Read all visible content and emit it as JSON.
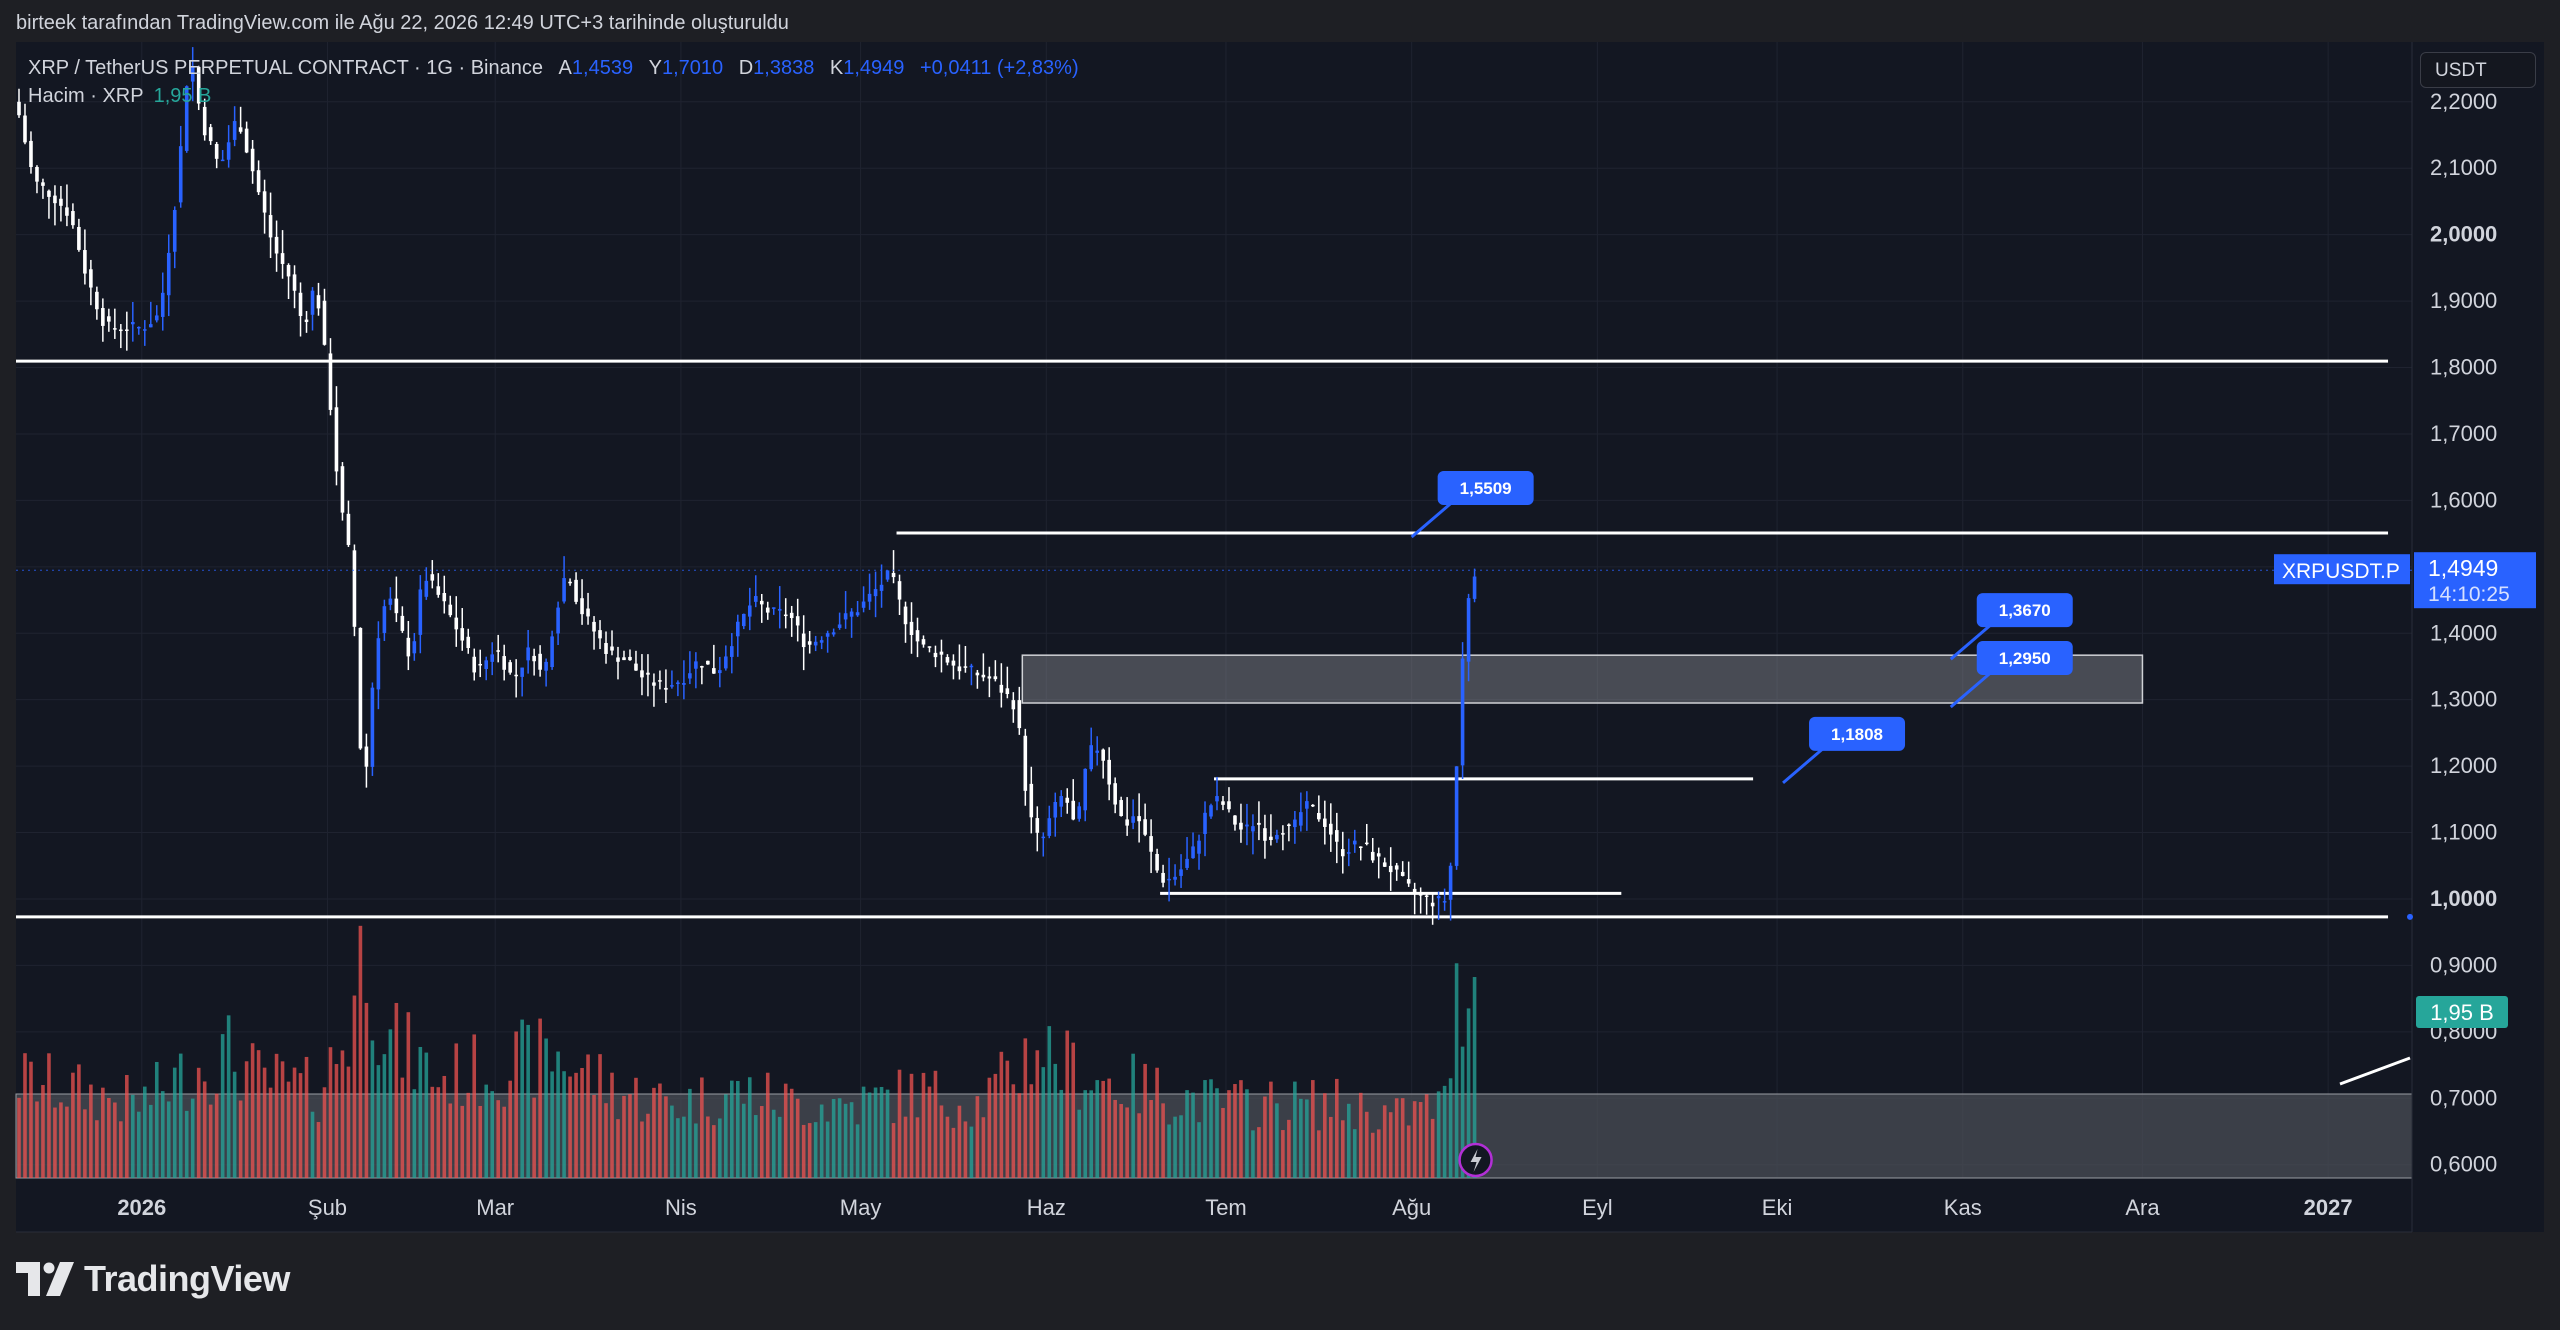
{
  "header": {
    "caption": "birteek tarafından TradingView.com ile Ağu 22, 2026 12:49 UTC+3 tarihinde oluşturuldu"
  },
  "legend": {
    "symbol_line": "XRP / TetherUS PERPETUAL CONTRACT · 1G · Binance",
    "open_key": "A",
    "open": "1,4539",
    "high_key": "Y",
    "high": "1,7010",
    "low_key": "D",
    "low": "1,3838",
    "close_key": "K",
    "close": "1,4949",
    "change": "+0,0411 (+2,83%)",
    "volume_label": "Hacim · XRP",
    "volume_value": "1,95 B"
  },
  "currency": "USDT",
  "brand": "TradingView",
  "colors": {
    "background": "#131722",
    "up": "#2962ff",
    "down": "#ffffff",
    "volume_up": "#26a69a",
    "volume_down": "#ef5350",
    "accent": "#2962ff"
  },
  "chart_data": {
    "type": "candlestick",
    "symbol": "XRPUSDT.P",
    "ylim": [
      0.58,
      2.29
    ],
    "y_ticks": [
      "2,2000",
      "2,1000",
      "2,0000",
      "1,9000",
      "1,8000",
      "1,7000",
      "1,6000",
      "1,5000",
      "1,4000",
      "1,3000",
      "1,2000",
      "1,1000",
      "1,0000",
      "0,9000",
      "0,8000",
      "0,7000",
      "0,6000"
    ],
    "y_ticks_bold": [
      "2,0000",
      "1,0000"
    ],
    "x_ticks": [
      {
        "label": "2026",
        "day": 21,
        "bold": true
      },
      {
        "label": "Şub",
        "day": 52
      },
      {
        "label": "Mar",
        "day": 80
      },
      {
        "label": "Nis",
        "day": 111
      },
      {
        "label": "May",
        "day": 141
      },
      {
        "label": "Haz",
        "day": 172
      },
      {
        "label": "Tem",
        "day": 202
      },
      {
        "label": "Ağu",
        "day": 233
      },
      {
        "label": "Eyl",
        "day": 264
      },
      {
        "label": "Eki",
        "day": 294
      },
      {
        "label": "Kas",
        "day": 325
      },
      {
        "label": "Ara",
        "day": 355
      },
      {
        "label": "2027",
        "day": 386,
        "bold": true
      }
    ],
    "last_price": {
      "label": "1,4949",
      "countdown": "14:10:25",
      "symbol_label": "XRPUSDT.P",
      "value": 1.4949
    },
    "volume_last_label": "1,95 B",
    "path_points": [
      [
        0,
        2.2
      ],
      [
        3,
        2.08
      ],
      [
        6,
        2.06
      ],
      [
        9,
        2.03
      ],
      [
        12,
        1.93
      ],
      [
        15,
        1.86
      ],
      [
        18,
        1.86
      ],
      [
        21,
        1.86
      ],
      [
        24,
        1.88
      ],
      [
        27,
        2.08
      ],
      [
        29,
        2.28
      ],
      [
        31,
        2.17
      ],
      [
        34,
        2.1
      ],
      [
        37,
        2.18
      ],
      [
        40,
        2.08
      ],
      [
        43,
        1.98
      ],
      [
        46,
        1.93
      ],
      [
        48,
        1.86
      ],
      [
        50,
        1.93
      ],
      [
        52,
        1.79
      ],
      [
        54,
        1.6
      ],
      [
        56,
        1.5
      ],
      [
        58,
        1.14
      ],
      [
        60,
        1.38
      ],
      [
        62,
        1.46
      ],
      [
        64,
        1.41
      ],
      [
        66,
        1.36
      ],
      [
        68,
        1.49
      ],
      [
        71,
        1.45
      ],
      [
        74,
        1.4
      ],
      [
        77,
        1.34
      ],
      [
        80,
        1.38
      ],
      [
        83,
        1.33
      ],
      [
        86,
        1.38
      ],
      [
        88,
        1.33
      ],
      [
        90,
        1.43
      ],
      [
        92,
        1.5
      ],
      [
        94,
        1.44
      ],
      [
        96,
        1.41
      ],
      [
        99,
        1.37
      ],
      [
        102,
        1.36
      ],
      [
        105,
        1.33
      ],
      [
        108,
        1.32
      ],
      [
        111,
        1.33
      ],
      [
        114,
        1.36
      ],
      [
        117,
        1.34
      ],
      [
        120,
        1.4
      ],
      [
        123,
        1.45
      ],
      [
        126,
        1.43
      ],
      [
        129,
        1.43
      ],
      [
        132,
        1.38
      ],
      [
        135,
        1.4
      ],
      [
        138,
        1.42
      ],
      [
        141,
        1.44
      ],
      [
        144,
        1.47
      ],
      [
        146,
        1.49
      ],
      [
        148,
        1.43
      ],
      [
        151,
        1.38
      ],
      [
        154,
        1.37
      ],
      [
        157,
        1.35
      ],
      [
        160,
        1.34
      ],
      [
        163,
        1.33
      ],
      [
        165,
        1.31
      ],
      [
        167,
        1.29
      ],
      [
        169,
        1.13
      ],
      [
        171,
        1.08
      ],
      [
        173,
        1.13
      ],
      [
        175,
        1.16
      ],
      [
        177,
        1.1
      ],
      [
        179,
        1.22
      ],
      [
        181,
        1.23
      ],
      [
        183,
        1.16
      ],
      [
        185,
        1.11
      ],
      [
        187,
        1.13
      ],
      [
        189,
        1.08
      ],
      [
        191,
        1.03
      ],
      [
        193,
        1.03
      ],
      [
        195,
        1.05
      ],
      [
        197,
        1.08
      ],
      [
        199,
        1.14
      ],
      [
        201,
        1.15
      ],
      [
        203,
        1.12
      ],
      [
        205,
        1.1
      ],
      [
        207,
        1.12
      ],
      [
        209,
        1.09
      ],
      [
        211,
        1.11
      ],
      [
        213,
        1.1
      ],
      [
        215,
        1.14
      ],
      [
        217,
        1.13
      ],
      [
        219,
        1.11
      ],
      [
        221,
        1.07
      ],
      [
        223,
        1.08
      ],
      [
        225,
        1.08
      ],
      [
        227,
        1.06
      ],
      [
        229,
        1.05
      ],
      [
        231,
        1.03
      ],
      [
        233,
        1.01
      ],
      [
        235,
        1.0
      ],
      [
        237,
        0.995
      ],
      [
        239,
        1.0
      ],
      [
        240,
        1.1
      ],
      [
        241,
        1.3
      ],
      [
        242,
        1.42
      ],
      [
        243,
        1.495
      ]
    ],
    "volume_points": [
      [
        0,
        0.4
      ],
      [
        10,
        0.35
      ],
      [
        20,
        0.3
      ],
      [
        30,
        0.45
      ],
      [
        35,
        0.5
      ],
      [
        40,
        0.4
      ],
      [
        50,
        0.35
      ],
      [
        55,
        0.6
      ],
      [
        58,
        1.0
      ],
      [
        60,
        0.7
      ],
      [
        62,
        0.55
      ],
      [
        65,
        0.5
      ],
      [
        70,
        0.4
      ],
      [
        80,
        0.45
      ],
      [
        90,
        0.5
      ],
      [
        100,
        0.35
      ],
      [
        110,
        0.3
      ],
      [
        120,
        0.35
      ],
      [
        130,
        0.3
      ],
      [
        140,
        0.3
      ],
      [
        150,
        0.35
      ],
      [
        160,
        0.3
      ],
      [
        165,
        0.4
      ],
      [
        170,
        0.55
      ],
      [
        175,
        0.45
      ],
      [
        180,
        0.4
      ],
      [
        190,
        0.35
      ],
      [
        200,
        0.3
      ],
      [
        210,
        0.3
      ],
      [
        220,
        0.3
      ],
      [
        230,
        0.25
      ],
      [
        238,
        0.3
      ],
      [
        240,
        0.7
      ],
      [
        241,
        0.78
      ],
      [
        242,
        0.82
      ],
      [
        243,
        0.8
      ]
    ],
    "horizontal_lines": [
      {
        "value": 1.8096,
        "from_day": 0,
        "to_day": 396
      },
      {
        "value": 1.5509,
        "from_day": 147,
        "to_day": 396
      },
      {
        "value": 1.1808,
        "from_day": 200,
        "to_day": 290
      },
      {
        "value": 1.0085,
        "from_day": 191,
        "to_day": 268
      },
      {
        "value": 0.973,
        "from_day": 0,
        "to_day": 396
      }
    ],
    "zones": [
      {
        "from_day": 168,
        "to_day": 355,
        "top": 1.367,
        "bottom": 1.295
      }
    ],
    "callouts": [
      {
        "label": "1,5509",
        "value": 1.5509,
        "day": 235
      },
      {
        "label": "1,3670",
        "value": 1.367,
        "day": 325
      },
      {
        "label": "1,2950",
        "value": 1.295,
        "day": 325
      },
      {
        "label": "1,1808",
        "value": 1.1808,
        "day": 297
      }
    ]
  }
}
